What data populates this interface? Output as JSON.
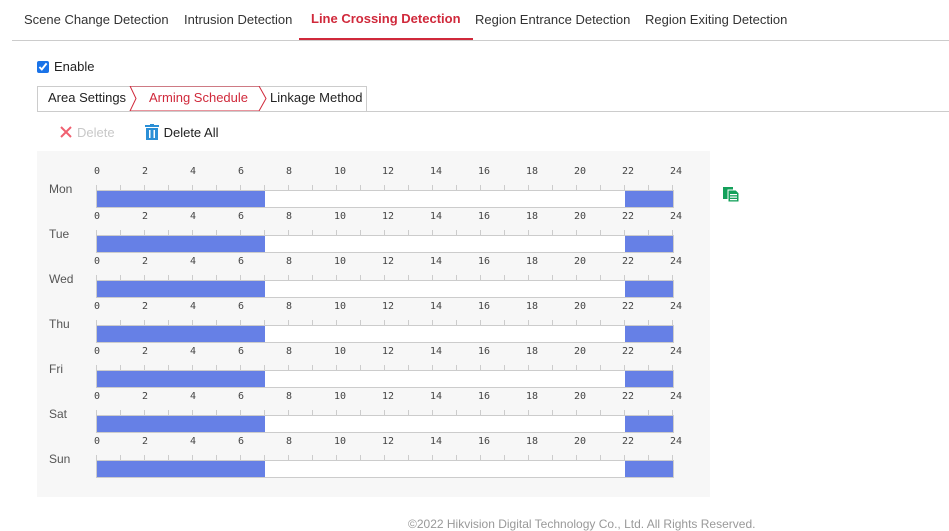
{
  "tabs": [
    {
      "label": "Scene Change Detection",
      "active": false
    },
    {
      "label": "Intrusion Detection",
      "active": false
    },
    {
      "label": "Line Crossing Detection",
      "active": true
    },
    {
      "label": "Region Entrance Detection",
      "active": false
    },
    {
      "label": "Region Exiting Detection",
      "active": false
    }
  ],
  "enable": {
    "label": "Enable",
    "checked": true
  },
  "subtabs": [
    {
      "label": "Area Settings",
      "active": false
    },
    {
      "label": "Arming Schedule",
      "active": true
    },
    {
      "label": "Linkage Method",
      "active": false
    }
  ],
  "toolbar": {
    "delete_label": "Delete",
    "delete_all_label": "Delete All",
    "delete_icon": "x-icon",
    "delete_all_icon": "trash-icon"
  },
  "schedule": {
    "hour_ticks": [
      "0",
      "2",
      "4",
      "6",
      "8",
      "10",
      "12",
      "14",
      "16",
      "18",
      "20",
      "22",
      "24"
    ],
    "segment_color": "#6680e6",
    "days": [
      {
        "label": "Mon",
        "segments": [
          [
            0,
            7
          ],
          [
            22,
            24
          ]
        ]
      },
      {
        "label": "Tue",
        "segments": [
          [
            0,
            7
          ],
          [
            22,
            24
          ]
        ]
      },
      {
        "label": "Wed",
        "segments": [
          [
            0,
            7
          ],
          [
            22,
            24
          ]
        ]
      },
      {
        "label": "Thu",
        "segments": [
          [
            0,
            7
          ],
          [
            22,
            24
          ]
        ]
      },
      {
        "label": "Fri",
        "segments": [
          [
            0,
            7
          ],
          [
            22,
            24
          ]
        ]
      },
      {
        "label": "Sat",
        "segments": [
          [
            0,
            7
          ],
          [
            22,
            24
          ]
        ]
      },
      {
        "label": "Sun",
        "segments": [
          [
            0,
            7
          ],
          [
            22,
            24
          ]
        ]
      }
    ]
  },
  "footer": {
    "text": "©2022 Hikvision Digital Technology Co., Ltd. All Rights Reserved."
  },
  "colors": {
    "accent": "#d0293b",
    "schedule": "#6680e6"
  }
}
